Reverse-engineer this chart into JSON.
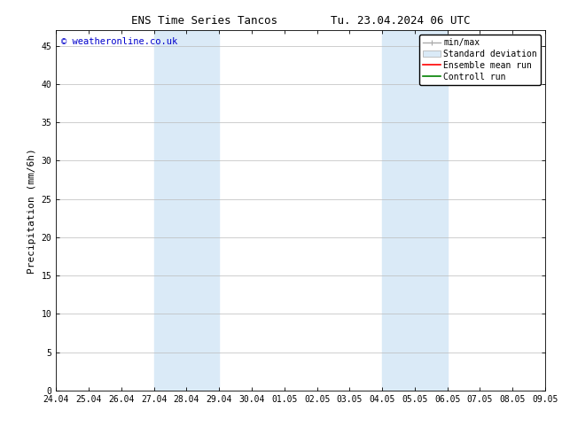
{
  "title_left": "ENS Time Series Tancos",
  "title_right": "Tu. 23.04.2024 06 UTC",
  "ylabel": "Precipitation (mm/6h)",
  "xlabel": "",
  "ylim": [
    0,
    47
  ],
  "yticks": [
    0,
    5,
    10,
    15,
    20,
    25,
    30,
    35,
    40,
    45
  ],
  "xtick_labels": [
    "24.04",
    "25.04",
    "26.04",
    "27.04",
    "28.04",
    "29.04",
    "30.04",
    "01.05",
    "02.05",
    "03.05",
    "04.05",
    "05.05",
    "06.05",
    "07.05",
    "08.05",
    "09.05"
  ],
  "x_positions": [
    0,
    1,
    2,
    3,
    4,
    5,
    6,
    7,
    8,
    9,
    10,
    11,
    12,
    13,
    14,
    15
  ],
  "shaded_bands": [
    {
      "xmin": 3,
      "xmax": 5,
      "color": "#daeaf7"
    },
    {
      "xmin": 10,
      "xmax": 12,
      "color": "#daeaf7"
    }
  ],
  "copyright_text": "© weatheronline.co.uk",
  "copyright_color": "#0000cc",
  "copyright_fontsize": 7.5,
  "legend_items": [
    {
      "label": "min/max",
      "type": "minmax",
      "color": "#aaaaaa"
    },
    {
      "label": "Standard deviation",
      "type": "patch",
      "facecolor": "#daeaf7",
      "edgecolor": "#aaaaaa"
    },
    {
      "label": "Ensemble mean run",
      "type": "line",
      "color": "#ff0000"
    },
    {
      "label": "Controll run",
      "type": "line",
      "color": "#008000"
    }
  ],
  "bg_color": "#ffffff",
  "plot_bg_color": "#ffffff",
  "tick_label_fontsize": 7,
  "axis_label_fontsize": 8,
  "title_fontsize": 9,
  "legend_fontsize": 7,
  "grid_color": "#bbbbbb",
  "grid_linewidth": 0.5
}
